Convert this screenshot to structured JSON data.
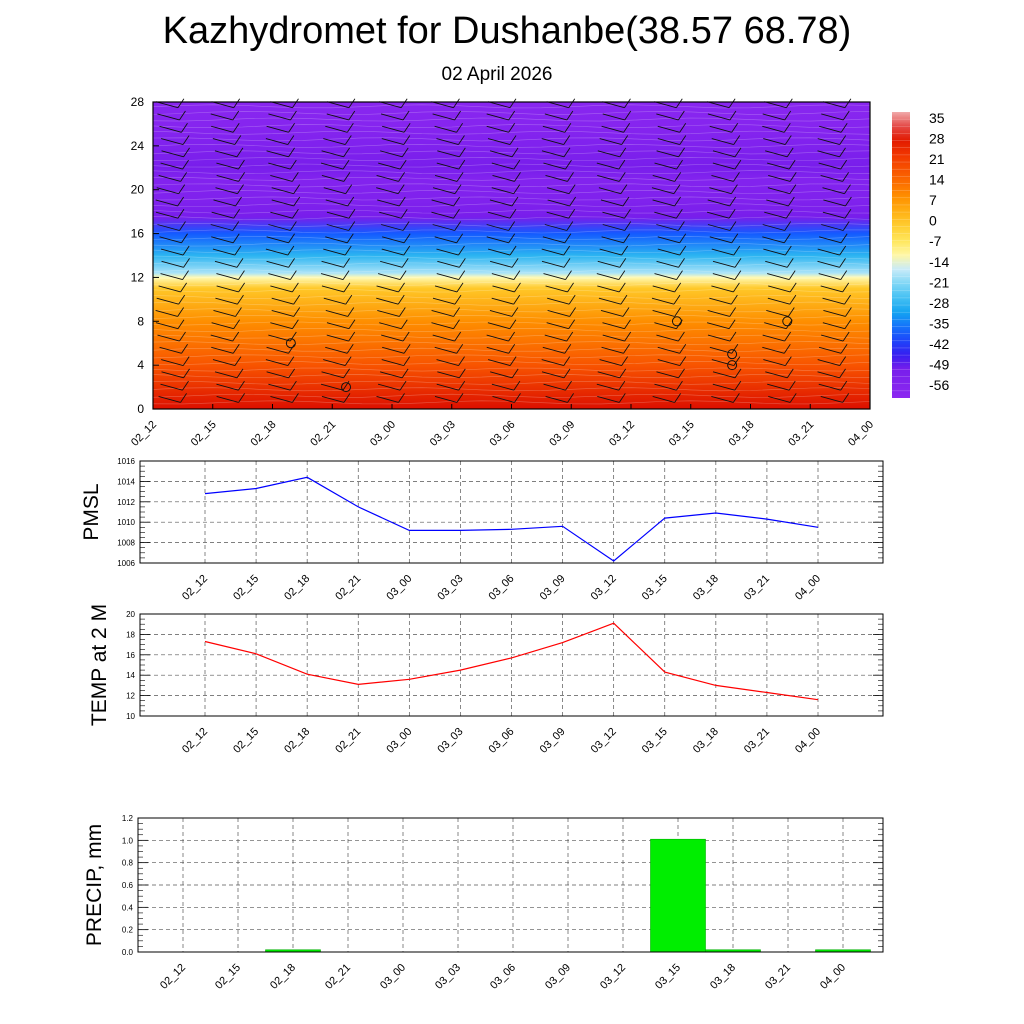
{
  "title": "Kazhydromet for Dushanbe(38.57 68.78)",
  "subtitle": "02 April 2026",
  "colors": {
    "pmsl_line": "#0000ff",
    "temp_line": "#ff0000",
    "precip_bar": "#00ee00",
    "grid": "#555555"
  },
  "chart_data": [
    {
      "type": "heatmap",
      "name": "vertical-profile",
      "x_ticks": [
        "02_12",
        "02_15",
        "02_18",
        "02_21",
        "03_00",
        "03_03",
        "03_06",
        "03_09",
        "03_12",
        "03_15",
        "03_18",
        "03_21",
        "04_00"
      ],
      "y_ticks": [
        "0",
        "4",
        "8",
        "12",
        "16",
        "20",
        "24",
        "28"
      ],
      "ylim": [
        0,
        28
      ],
      "colorbar_labels": [
        "35",
        "28",
        "21",
        "14",
        "7",
        "0",
        "-7",
        "-14",
        "-21",
        "-28",
        "-35",
        "-42",
        "-49",
        "-56"
      ],
      "colorbar_range": [
        -60,
        38
      ],
      "profile": [
        {
          "level": 0,
          "value": 30
        },
        {
          "level": 4,
          "value": 18
        },
        {
          "level": 8,
          "value": 9
        },
        {
          "level": 11,
          "value": 0
        },
        {
          "level": 12,
          "value": -12
        },
        {
          "level": 12.4,
          "value": -18
        },
        {
          "level": 14,
          "value": -28
        },
        {
          "level": 16,
          "value": -38
        },
        {
          "level": 17.5,
          "value": -50
        },
        {
          "level": 19,
          "value": -54
        },
        {
          "level": 21,
          "value": -55
        },
        {
          "level": 22,
          "value": -50
        },
        {
          "level": 23.5,
          "value": -53
        },
        {
          "level": 26,
          "value": -57
        },
        {
          "level": 28,
          "value": -58
        }
      ]
    },
    {
      "type": "line",
      "name": "pmsl",
      "ylabel": "PMSL",
      "categories": [
        "02_12",
        "02_15",
        "02_18",
        "02_21",
        "03_00",
        "03_03",
        "03_06",
        "03_09",
        "03_12",
        "03_15",
        "03_18",
        "03_21",
        "04_00"
      ],
      "values": [
        1012.8,
        1013.3,
        1014.4,
        1011.5,
        1009.2,
        1009.2,
        1009.3,
        1009.6,
        1006.2,
        1010.4,
        1010.9,
        1010.3,
        1009.5
      ],
      "y_ticks": [
        "1006",
        "1008",
        "1010",
        "1012",
        "1014",
        "1016"
      ],
      "ylim": [
        1006,
        1016
      ]
    },
    {
      "type": "line",
      "name": "temp-2m",
      "ylabel": "TEMP at 2 M",
      "categories": [
        "02_12",
        "02_15",
        "02_18",
        "02_21",
        "03_00",
        "03_03",
        "03_06",
        "03_09",
        "03_12",
        "03_15",
        "03_18",
        "03_21",
        "04_00"
      ],
      "values": [
        17.3,
        16.1,
        14.1,
        13.1,
        13.6,
        14.5,
        15.7,
        17.2,
        19.1,
        14.3,
        13.0,
        12.3,
        11.6
      ],
      "y_ticks": [
        "10",
        "12",
        "14",
        "16",
        "18",
        "20"
      ],
      "ylim": [
        10,
        20
      ]
    },
    {
      "type": "bar",
      "name": "precip",
      "ylabel": "PRECIP, mm",
      "categories": [
        "02_12",
        "02_15",
        "02_18",
        "02_21",
        "03_00",
        "03_03",
        "03_06",
        "03_09",
        "03_12",
        "03_15",
        "03_18",
        "03_21",
        "04_00"
      ],
      "values": [
        0,
        0,
        0.02,
        0,
        0,
        0,
        0,
        0,
        0,
        1.01,
        0.02,
        0,
        0.02
      ],
      "y_ticks": [
        "0.0",
        "0.2",
        "0.4",
        "0.6",
        "0.8",
        "1.0",
        "1.2"
      ],
      "ylim": [
        0,
        1.2
      ]
    }
  ]
}
